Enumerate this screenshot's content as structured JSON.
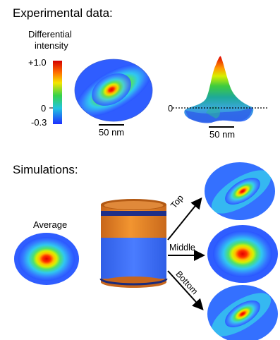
{
  "experimental": {
    "heading": "Experimental data:",
    "colorbar": {
      "title_line1": "Differential",
      "title_line2": "intensity",
      "max_label": "+1.0",
      "zero_label": "0",
      "min_label": "-0.3"
    },
    "scalebar_2d": "50 nm",
    "scalebar_3d": "50 nm",
    "surface_zero_label": "0"
  },
  "simulations": {
    "heading": "Simulations:",
    "average_label": "Average",
    "arrows": [
      "Top",
      "Middle",
      "Bottom"
    ]
  },
  "colors": {
    "map_low": "#2b6bff",
    "map_high": "#e00000",
    "cylinder_copper": "#d97a1c",
    "cylinder_blue": "#3b6cf0",
    "cylinder_band": "#1c2b7a"
  }
}
